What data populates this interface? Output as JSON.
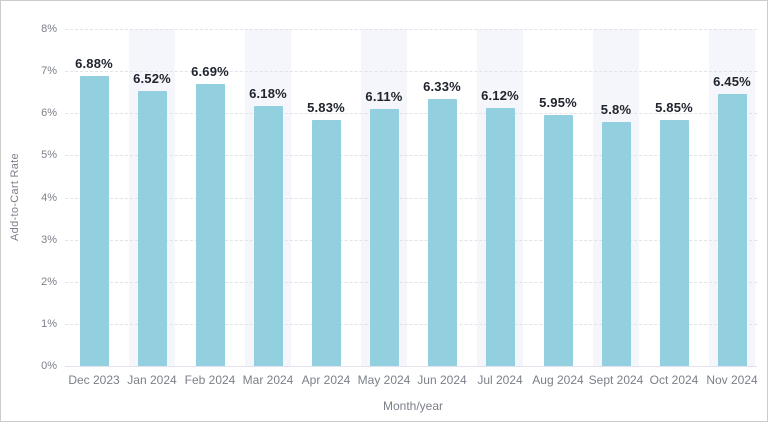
{
  "chart_data": {
    "type": "bar",
    "title": "",
    "categories": [
      "Dec 2023",
      "Jan 2024",
      "Feb 2024",
      "Mar 2024",
      "Apr 2024",
      "May 2024",
      "Jun 2024",
      "Jul 2024",
      "Aug 2024",
      "Sept 2024",
      "Oct 2024",
      "Nov 2024"
    ],
    "values": [
      6.88,
      6.52,
      6.69,
      6.18,
      5.83,
      6.11,
      6.33,
      6.12,
      5.95,
      5.8,
      5.85,
      6.45
    ],
    "value_labels": [
      "6.88%",
      "6.52%",
      "6.69%",
      "6.18%",
      "5.83%",
      "6.11%",
      "6.33%",
      "6.12%",
      "5.95%",
      "5.8%",
      "5.85%",
      "6.45%"
    ],
    "xlabel": "Month/year",
    "ylabel": "Add-to-Cart Rate",
    "ylim": [
      0,
      8
    ],
    "ytick_step": 1,
    "ytick_labels": [
      "0%",
      "1%",
      "2%",
      "3%",
      "4%",
      "5%",
      "6%",
      "7%",
      "8%"
    ],
    "grid": "horizontal-dashed",
    "legend_position": "none",
    "banded_column_indices": [
      1,
      3,
      5,
      7,
      9,
      11
    ],
    "colors": {
      "bar_fill": "#92d0e0",
      "column_band": "#f5f6fb",
      "gridline": "#e2e2ea",
      "axis_baseline": "#e2e2ee",
      "tick_text": "#7b8089",
      "value_label_text": "#20242e",
      "background": "#ffffff",
      "frame_border": "#cccccc"
    }
  }
}
